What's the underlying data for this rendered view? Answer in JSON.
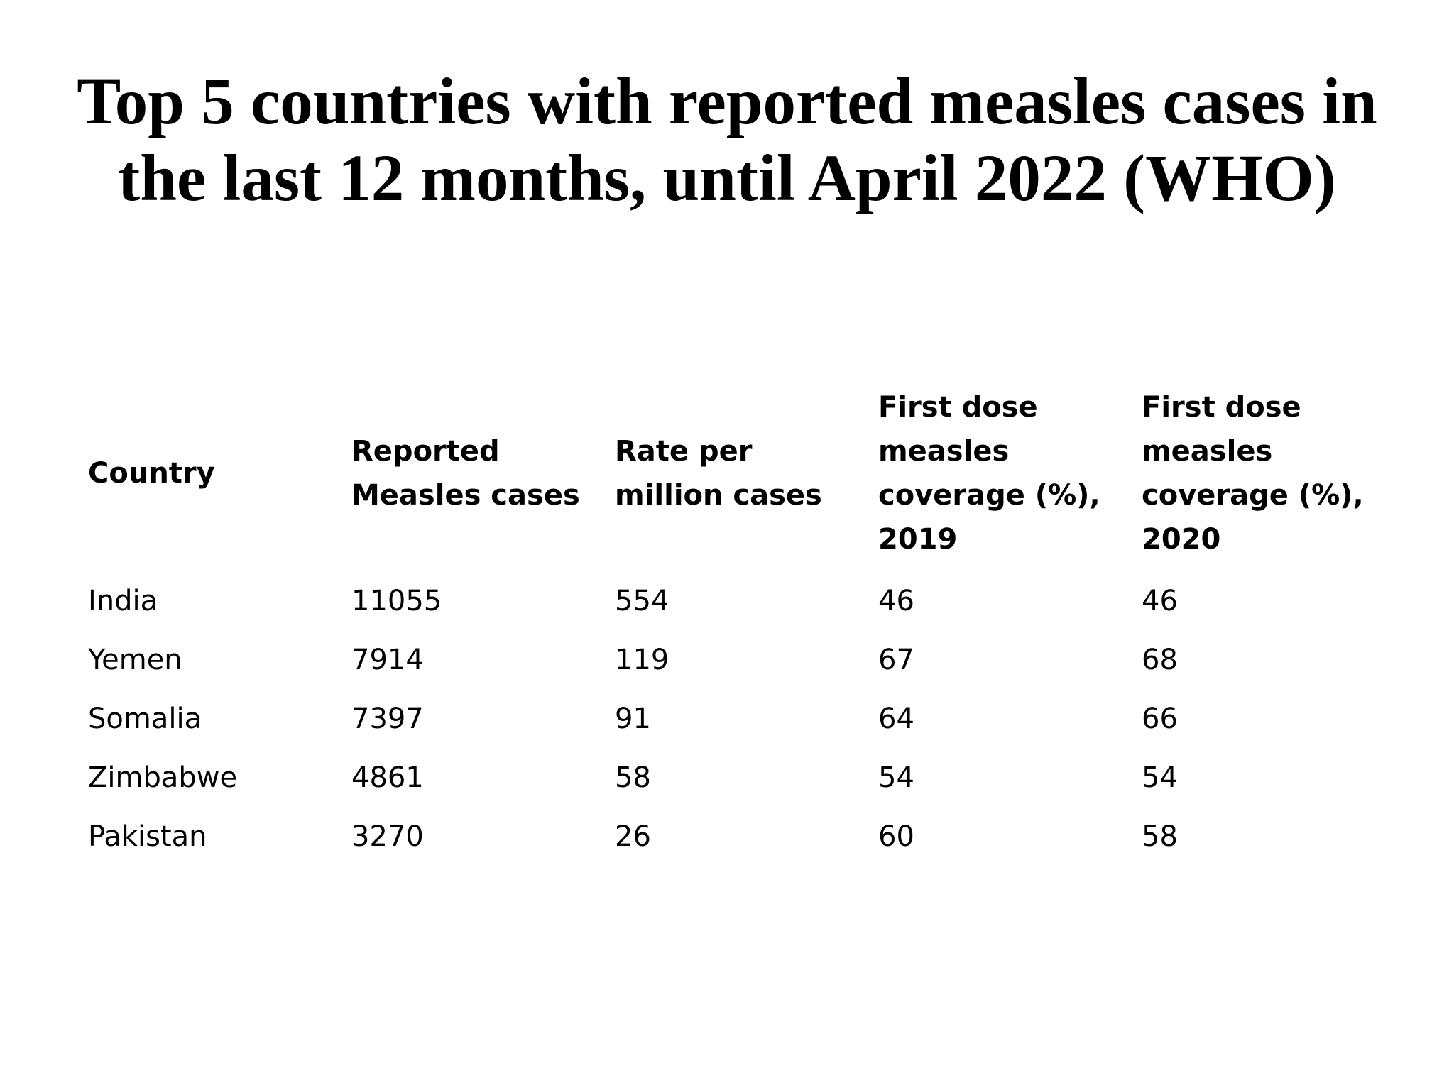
{
  "title": {
    "line1": "Top 5 countries with reported measles cases in",
    "line2": "the last 12 months, until April 2022 (WHO)"
  },
  "table": {
    "headers": [
      "Country",
      "Reported Measles cases",
      "Rate per million cases",
      "First dose measles coverage (%), 2019",
      "First dose measles coverage (%), 2020"
    ],
    "rows": [
      [
        "India",
        "11055",
        "554",
        "46",
        "46"
      ],
      [
        "Yemen",
        "7914",
        "119",
        "67",
        "68"
      ],
      [
        "Somalia",
        "7397",
        "91",
        "64",
        "66"
      ],
      [
        "Zimbabwe",
        "4861",
        "58",
        "54",
        "54"
      ],
      [
        "Pakistan",
        "3270",
        "26",
        "60",
        "58"
      ]
    ]
  }
}
